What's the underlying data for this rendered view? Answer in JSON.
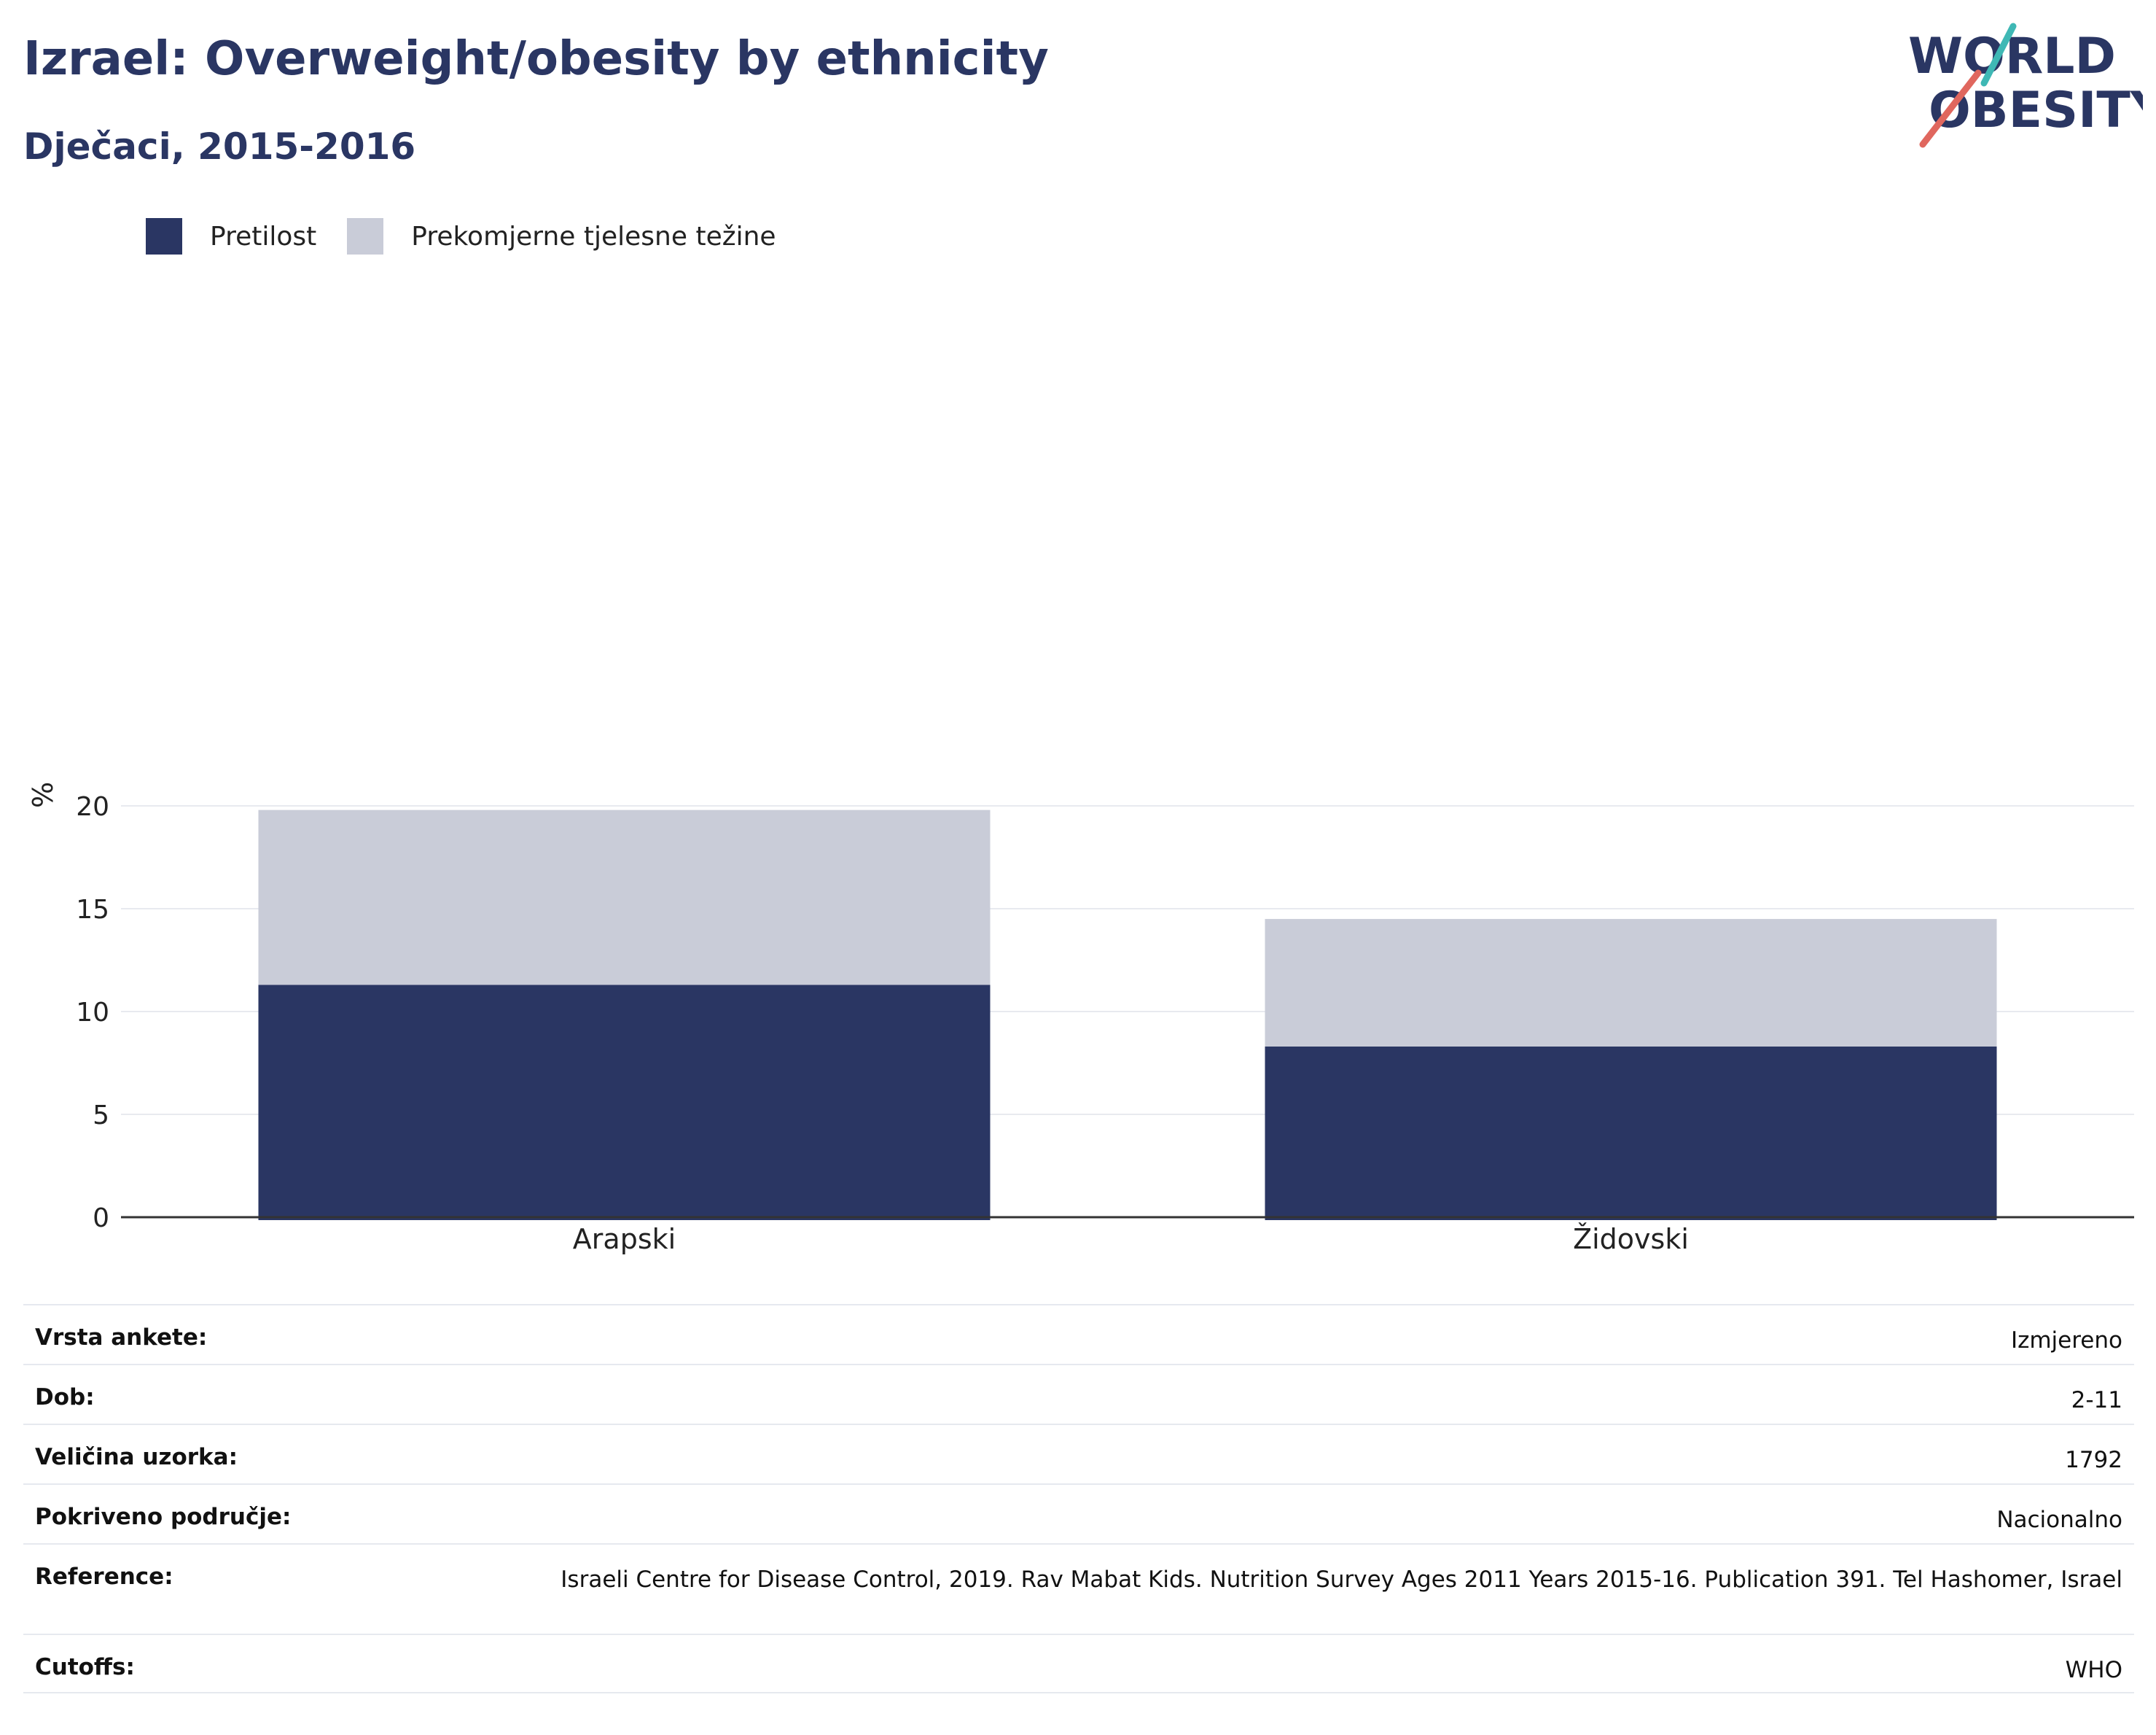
{
  "header": {
    "title": "Izrael: Overweight/obesity by ethnicity",
    "subtitle": "Dječaci, 2015-2016"
  },
  "logo": {
    "line1": "WORLD",
    "line2": "OBESITY"
  },
  "colors": {
    "obesity": "#2a3663",
    "overweight": "#c9ccd8",
    "text": "#2a3663",
    "logo_teal": "#3fb8b5",
    "logo_red": "#e0675e"
  },
  "chart_data": {
    "type": "bar",
    "stacked": true,
    "categories": [
      "Arapski",
      "Židovski"
    ],
    "series": [
      {
        "name": "Pretilost",
        "values": [
          11.3,
          8.3
        ]
      },
      {
        "name": "Prekomjerne tjelesne težine",
        "values": [
          8.5,
          6.2
        ]
      }
    ],
    "ylabel": "%",
    "ylim": [
      0,
      20
    ],
    "yticks": [
      0,
      5,
      10,
      15,
      20
    ],
    "grid": true,
    "legend": "top-left"
  },
  "info": [
    {
      "key": "Vrsta ankete:",
      "value": "Izmjereno"
    },
    {
      "key": "Dob:",
      "value": "2-11"
    },
    {
      "key": "Veličina uzorka:",
      "value": "1792"
    },
    {
      "key": "Pokriveno područje:",
      "value": "Nacionalno"
    },
    {
      "key": "Reference:",
      "value": "Israeli Centre for Disease Control, 2019. Rav Mabat Kids. Nutrition Survey Ages 2011 Years 2015-16. Publication 391. Tel Hashomer, Israel"
    },
    {
      "key": "Cutoffs:",
      "value": "WHO"
    }
  ]
}
